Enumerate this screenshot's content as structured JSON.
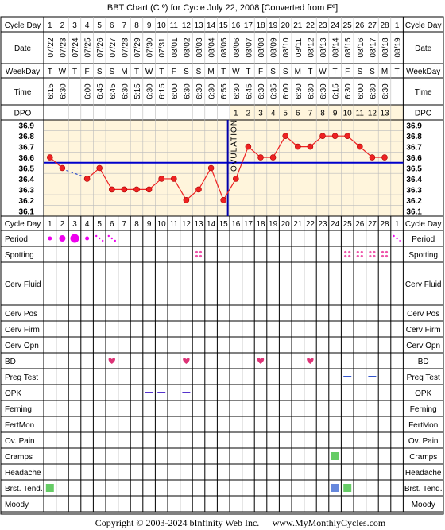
{
  "title": "BBT Chart (C º) for Cycle July 22, 2008  [Converted from Fº]",
  "footer": {
    "copyright": "Copyright © 2003-2024 bInfinity Web Inc.",
    "site": "www.MyMonthlyCycles.com"
  },
  "labels": {
    "cycle_day": "Cycle Day",
    "date": "Date",
    "weekday": "WeekDay",
    "time": "Time",
    "dpo": "DPO",
    "ovulation": "OVULATION"
  },
  "cycle_days": [
    "1",
    "2",
    "3",
    "4",
    "5",
    "6",
    "7",
    "8",
    "9",
    "10",
    "11",
    "12",
    "13",
    "14",
    "15",
    "16",
    "17",
    "18",
    "19",
    "20",
    "21",
    "22",
    "23",
    "24",
    "25",
    "26",
    "27",
    "28",
    "1"
  ],
  "dates": [
    "07/22",
    "07/23",
    "07/24",
    "07/25",
    "07/26",
    "07/27",
    "07/28",
    "07/29",
    "07/30",
    "07/31",
    "08/01",
    "08/02",
    "08/03",
    "08/04",
    "08/05",
    "08/06",
    "08/07",
    "08/08",
    "08/09",
    "08/10",
    "08/11",
    "08/12",
    "08/13",
    "08/14",
    "08/15",
    "08/16",
    "08/17",
    "08/18",
    "08/19"
  ],
  "weekdays": [
    "T",
    "W",
    "T",
    "F",
    "S",
    "S",
    "M",
    "T",
    "W",
    "T",
    "F",
    "S",
    "S",
    "M",
    "T",
    "W",
    "T",
    "F",
    "S",
    "S",
    "M",
    "T",
    "W",
    "T",
    "F",
    "S",
    "S",
    "M",
    "T"
  ],
  "times": [
    "6:15",
    "6:30",
    "",
    "6:00",
    "6:45",
    "6:45",
    "6:30",
    "5:15",
    "6:30",
    "6:15",
    "6:00",
    "6:30",
    "6:30",
    "6:30",
    "6:55",
    "6:30",
    "6:45",
    "6:30",
    "6:35",
    "6:00",
    "6:30",
    "6:30",
    "6:30",
    "6:15",
    "6:30",
    "6:00",
    "6:30",
    "6:30",
    ""
  ],
  "dpo_values": [
    "",
    "",
    "",
    "",
    "",
    "",
    "",
    "",
    "",
    "",
    "",
    "",
    "",
    "",
    "",
    "1",
    "2",
    "3",
    "4",
    "5",
    "6",
    "7",
    "8",
    "9",
    "10",
    "11",
    "12",
    "13",
    ""
  ],
  "temp_labels": [
    "36.9",
    "36.8",
    "36.7",
    "36.6",
    "36.5",
    "36.4",
    "36.3",
    "36.2",
    "36.1"
  ],
  "chart_data": {
    "type": "line",
    "title": "BBT Chart (C º) for Cycle July 22, 2008  [Converted from Fº]",
    "xlabel": "Cycle Day",
    "ylabel": "",
    "ylim": [
      36.05,
      36.95
    ],
    "coverline": 36.55,
    "ovulation_day": 15,
    "series": [
      {
        "name": "",
        "x": [
          1,
          2,
          4,
          5,
          6,
          7,
          8,
          9,
          10,
          11,
          12,
          13,
          14,
          15,
          16,
          17,
          18,
          19,
          20,
          21,
          22,
          23,
          24,
          25,
          26,
          27,
          28
        ],
        "y": [
          36.6,
          36.5,
          36.4,
          36.5,
          36.3,
          36.3,
          36.3,
          36.3,
          36.4,
          36.4,
          36.2,
          36.3,
          36.5,
          36.2,
          36.4,
          36.7,
          36.6,
          36.6,
          36.8,
          36.7,
          36.7,
          36.8,
          36.8,
          36.8,
          36.7,
          36.6,
          36.6
        ]
      }
    ],
    "gap": [
      2,
      4
    ]
  },
  "rows": [
    {
      "label": "Period",
      "tall": false
    },
    {
      "label": "Spotting",
      "tall": false
    },
    {
      "label": "Cerv Fluid",
      "tall": true
    },
    {
      "label": "Cerv Pos",
      "tall": false
    },
    {
      "label": "Cerv Firm",
      "tall": false
    },
    {
      "label": "Cerv Opn",
      "tall": false
    },
    {
      "label": "BD",
      "tall": false
    },
    {
      "label": "Preg Test",
      "tall": false
    },
    {
      "label": "OPK",
      "tall": false
    },
    {
      "label": "Ferning",
      "tall": false
    },
    {
      "label": "FertMon",
      "tall": false
    },
    {
      "label": "Ov. Pain",
      "tall": false
    },
    {
      "label": "Cramps",
      "tall": false
    },
    {
      "label": "Headache",
      "tall": false
    },
    {
      "label": "Brst. Tend.",
      "tall": false
    },
    {
      "label": "Moody",
      "tall": false
    }
  ],
  "markers": {
    "period": [
      {
        "day": 1,
        "size": "s"
      },
      {
        "day": 2,
        "size": "m"
      },
      {
        "day": 3,
        "size": "l"
      },
      {
        "day": 4,
        "size": "s"
      },
      {
        "day": 5,
        "size": "dots"
      },
      {
        "day": 6,
        "size": "dots"
      },
      {
        "day": 29,
        "size": "dots"
      }
    ],
    "spotting": [
      13,
      25,
      26,
      27,
      28
    ],
    "bd": [
      6,
      12,
      18,
      22
    ],
    "preg_test": [
      25,
      27
    ],
    "opk": [
      9,
      10,
      12
    ],
    "cramps": [
      {
        "day": 24,
        "color": "#66cc66"
      }
    ],
    "brst_tend": [
      {
        "day": 1,
        "color": "#66cc66"
      },
      {
        "day": 24,
        "color": "#6688dd"
      },
      {
        "day": 25,
        "color": "#66cc66"
      }
    ]
  },
  "colors": {
    "chart_bg": "#fff5dc",
    "line": "#ee2222",
    "point": "#ee2222",
    "coverline": "#0000cc",
    "gap_line": "#2244cc",
    "period": "#ee00ee",
    "spotting": "#ee55aa",
    "heart": "#dd3377",
    "opk": "#5533cc",
    "preg_test": "#3355cc",
    "dpo_bg": "#fff5dc"
  }
}
